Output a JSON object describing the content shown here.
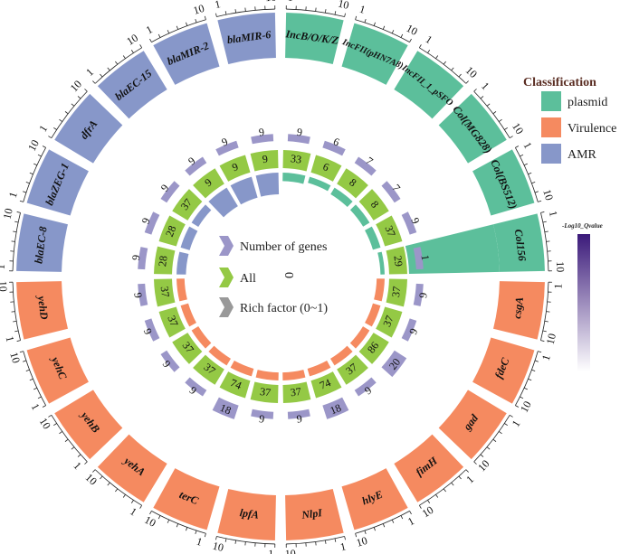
{
  "chart_data": {
    "type": "circos",
    "categories": [
      "IncB/O/K/Z",
      "IncFII(pHN7A8)",
      "IncFII_1_pSFO",
      "Col(MG828)",
      "Col(BS512)",
      "Col156",
      "csgA",
      "fdeC",
      "gad",
      "fimH",
      "hlyE",
      "NlpI",
      "lpfA",
      "terC",
      "yehA",
      "yehB",
      "yehC",
      "yehD",
      "blaEC-8",
      "blaZEG-1",
      "dfrA",
      "blaEC-15",
      "blaMIR-2",
      "blaMIR-6"
    ],
    "classes": [
      "plasmid",
      "plasmid",
      "plasmid",
      "plasmid",
      "plasmid",
      "plasmid",
      "Virulence",
      "Virulence",
      "Virulence",
      "Virulence",
      "Virulence",
      "Virulence",
      "Virulence",
      "Virulence",
      "Virulence",
      "Virulence",
      "Virulence",
      "Virulence",
      "AMR",
      "AMR",
      "AMR",
      "AMR",
      "AMR",
      "AMR"
    ],
    "number_of_genes": [
      9,
      6,
      7,
      7,
      9,
      1,
      9,
      9,
      20,
      9,
      18,
      9,
      9,
      18,
      9,
      9,
      9,
      9,
      9,
      9,
      9,
      9,
      9,
      9
    ],
    "all": [
      33,
      6,
      8,
      8,
      37,
      29,
      37,
      37,
      86,
      37,
      74,
      37,
      37,
      74,
      37,
      37,
      37,
      37,
      28,
      28,
      37,
      9,
      9,
      9
    ],
    "rich_factor": [
      0.27,
      0.15,
      0.22,
      0.22,
      0.24,
      0.03,
      0.24,
      0.24,
      0.23,
      0.24,
      0.24,
      0.24,
      0.24,
      0.24,
      0.24,
      0.24,
      0.24,
      0.24,
      0.32,
      0.32,
      0.24,
      1.0,
      1.0,
      1.0
    ],
    "neg_log10_qvalue": [
      0.2,
      0.15,
      0.15,
      0.15,
      0.2,
      1.0,
      0.2,
      0.2,
      0.3,
      0.2,
      0.25,
      0.2,
      0.2,
      0.25,
      0.2,
      0.2,
      0.2,
      0.2,
      0.15,
      0.15,
      0.2,
      0.15,
      0.15,
      0.15
    ],
    "tick_labels": [
      "1",
      "10"
    ],
    "class_colors": {
      "plasmid": "#5cbf9b",
      "Virulence": "#f58a60",
      "AMR": "#8797c9"
    },
    "ring_colors": {
      "genes": "#9b96c8",
      "all": "#94c945",
      "rich_plasmid": "#5cbf9b",
      "rich_Virulence": "#f58a60",
      "rich_AMR": "#8797c9"
    },
    "center_zero": "0"
  },
  "legend": {
    "title": "Classification",
    "items": [
      {
        "label": "plasmid",
        "color": "#5cbf9b"
      },
      {
        "label": "Virulence",
        "color": "#f58a60"
      },
      {
        "label": "AMR",
        "color": "#8797c9"
      }
    ]
  },
  "center_legend": {
    "items": [
      {
        "label": "Number of genes",
        "color": "#9b96c8"
      },
      {
        "label": "All",
        "color": "#94c945"
      },
      {
        "label": "Rich factor (0~1)",
        "color": "#999999"
      }
    ]
  },
  "colorbar": {
    "title": "-Log10_Qvalue",
    "color_low": "#ffffff",
    "color_high": "#3b1a7a"
  }
}
